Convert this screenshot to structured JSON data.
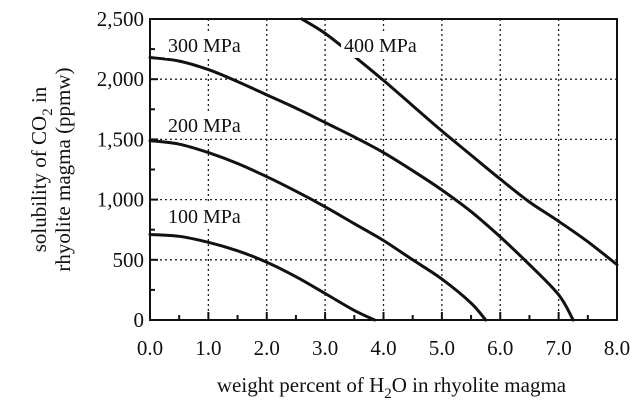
{
  "chart_data": {
    "type": "line",
    "xlabel": "weight percent of H₂O in rhyolite magma",
    "xlabel_parts": [
      "weight percent of H",
      "2",
      "O in rhyolite magma"
    ],
    "ylabel_line1_parts": [
      "solubility of CO",
      "2",
      " in"
    ],
    "ylabel_line2": "rhyolite magma (ppmw)",
    "xlim": [
      0,
      8
    ],
    "ylim": [
      0,
      2500
    ],
    "x_ticks": [
      "0.0",
      "1.0",
      "2.0",
      "3.0",
      "4.0",
      "5.0",
      "6.0",
      "7.0",
      "8.0"
    ],
    "y_ticks": [
      "0",
      "500",
      "1,000",
      "1,500",
      "2,000",
      "2,500"
    ],
    "grid": true,
    "series": [
      {
        "name": "100 MPa",
        "x": [
          0,
          0.5,
          1.0,
          1.5,
          2.0,
          2.5,
          3.0,
          3.5,
          3.85
        ],
        "y": [
          710,
          695,
          645,
          575,
          480,
          360,
          220,
          80,
          0
        ]
      },
      {
        "name": "200 MPa",
        "x": [
          0,
          0.5,
          1.0,
          1.5,
          2.0,
          2.5,
          3.0,
          3.5,
          4.0,
          4.5,
          5.0,
          5.5,
          5.75
        ],
        "y": [
          1490,
          1460,
          1390,
          1300,
          1190,
          1070,
          940,
          800,
          660,
          500,
          340,
          140,
          0
        ]
      },
      {
        "name": "300 MPa",
        "x": [
          0,
          0.5,
          1.0,
          1.5,
          2.0,
          2.5,
          3.0,
          3.5,
          4.0,
          4.5,
          5.0,
          5.5,
          6.0,
          6.5,
          7.0,
          7.25
        ],
        "y": [
          2180,
          2150,
          2080,
          1980,
          1870,
          1760,
          1640,
          1520,
          1390,
          1240,
          1080,
          900,
          690,
          460,
          210,
          0
        ]
      },
      {
        "name": "400 MPa",
        "x": [
          2.6,
          3.0,
          3.5,
          4.0,
          4.5,
          5.0,
          5.5,
          6.0,
          6.5,
          7.0,
          7.5,
          8.0
        ],
        "y": [
          2500,
          2380,
          2190,
          1990,
          1780,
          1570,
          1370,
          1170,
          980,
          820,
          650,
          460
        ]
      }
    ]
  }
}
